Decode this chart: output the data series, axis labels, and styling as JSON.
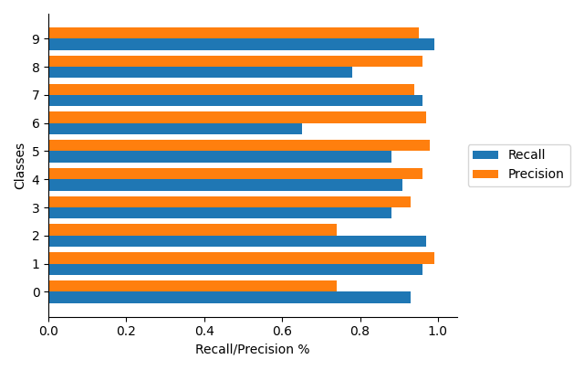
{
  "classes": [
    0,
    1,
    2,
    3,
    4,
    5,
    6,
    7,
    8,
    9
  ],
  "recall": [
    0.93,
    0.96,
    0.97,
    0.88,
    0.91,
    0.88,
    0.65,
    0.96,
    0.78,
    0.99
  ],
  "precision": [
    0.74,
    0.99,
    0.74,
    0.93,
    0.96,
    0.98,
    0.97,
    0.94,
    0.96,
    0.95
  ],
  "recall_color": "#1f77b4",
  "precision_color": "#ff7f0e",
  "xlabel": "Recall/Precision %",
  "ylabel": "Classes",
  "legend_labels": [
    "Recall",
    "Precision"
  ],
  "xlim": [
    0.0,
    1.05
  ],
  "bar_height": 0.4,
  "figsize": [
    6.4,
    4.05
  ],
  "dpi": 100
}
